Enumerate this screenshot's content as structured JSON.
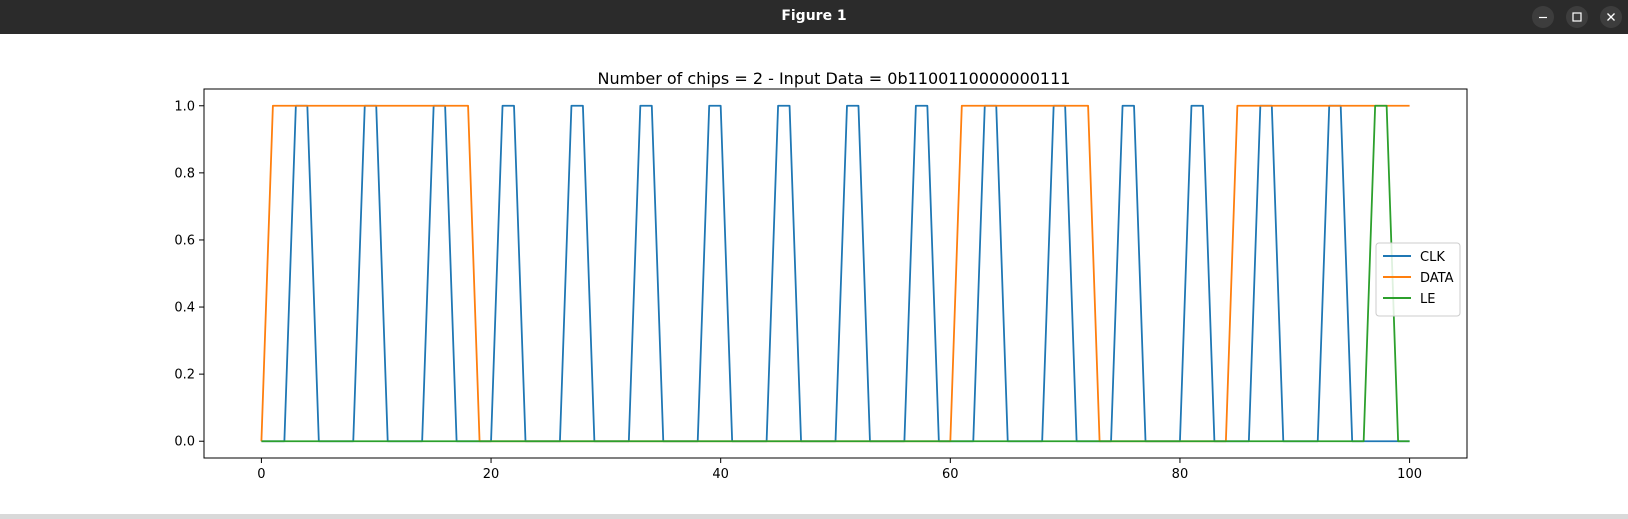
{
  "window": {
    "title": "Figure 1",
    "controls": {
      "minimize": "minimize-icon",
      "maximize": "maximize-icon",
      "close": "close-icon"
    }
  },
  "chart_data": {
    "type": "line",
    "title": "Number of chips = 2 - Input Data = 0b1100110000000111",
    "xlabel": "",
    "ylabel": "",
    "xlim": [
      -5,
      105
    ],
    "ylim": [
      -0.05,
      1.05
    ],
    "x_ticks": [
      0,
      20,
      40,
      60,
      80,
      100
    ],
    "y_ticks": [
      0.0,
      0.2,
      0.4,
      0.6,
      0.8,
      1.0
    ],
    "x_tick_labels": [
      "0",
      "20",
      "40",
      "60",
      "80",
      "100"
    ],
    "y_tick_labels": [
      "0.0",
      "0.2",
      "0.4",
      "0.6",
      "0.8",
      "1.0"
    ],
    "grid": false,
    "legend_position": "center-right",
    "series": [
      {
        "name": "CLK",
        "color": "#1f77b4",
        "x": [
          0,
          2,
          3,
          4,
          5,
          8,
          9,
          10,
          11,
          14,
          15,
          16,
          17,
          20,
          21,
          22,
          23,
          26,
          27,
          28,
          29,
          32,
          33,
          34,
          35,
          38,
          39,
          40,
          41,
          44,
          45,
          46,
          47,
          50,
          51,
          52,
          53,
          56,
          57,
          58,
          59,
          62,
          63,
          64,
          65,
          68,
          69,
          70,
          71,
          74,
          75,
          76,
          77,
          80,
          81,
          82,
          83,
          86,
          87,
          88,
          89,
          92,
          93,
          94,
          95,
          100
        ],
        "y": [
          0,
          0,
          1,
          1,
          0,
          0,
          1,
          1,
          0,
          0,
          1,
          1,
          0,
          0,
          1,
          1,
          0,
          0,
          1,
          1,
          0,
          0,
          1,
          1,
          0,
          0,
          1,
          1,
          0,
          0,
          1,
          1,
          0,
          0,
          1,
          1,
          0,
          0,
          1,
          1,
          0,
          0,
          1,
          1,
          0,
          0,
          1,
          1,
          0,
          0,
          1,
          1,
          0,
          0,
          1,
          1,
          0,
          0,
          1,
          1,
          0,
          0,
          1,
          1,
          0,
          0
        ]
      },
      {
        "name": "DATA",
        "color": "#ff7f0e",
        "x": [
          0,
          1,
          18,
          19,
          60,
          61,
          72,
          73,
          84,
          85,
          100
        ],
        "y": [
          0,
          1,
          1,
          0,
          0,
          1,
          1,
          0,
          0,
          1,
          1
        ]
      },
      {
        "name": "LE",
        "color": "#2ca02c",
        "x": [
          0,
          96,
          97,
          98,
          99,
          100
        ],
        "y": [
          0,
          0,
          1,
          1,
          0,
          0
        ]
      }
    ]
  }
}
